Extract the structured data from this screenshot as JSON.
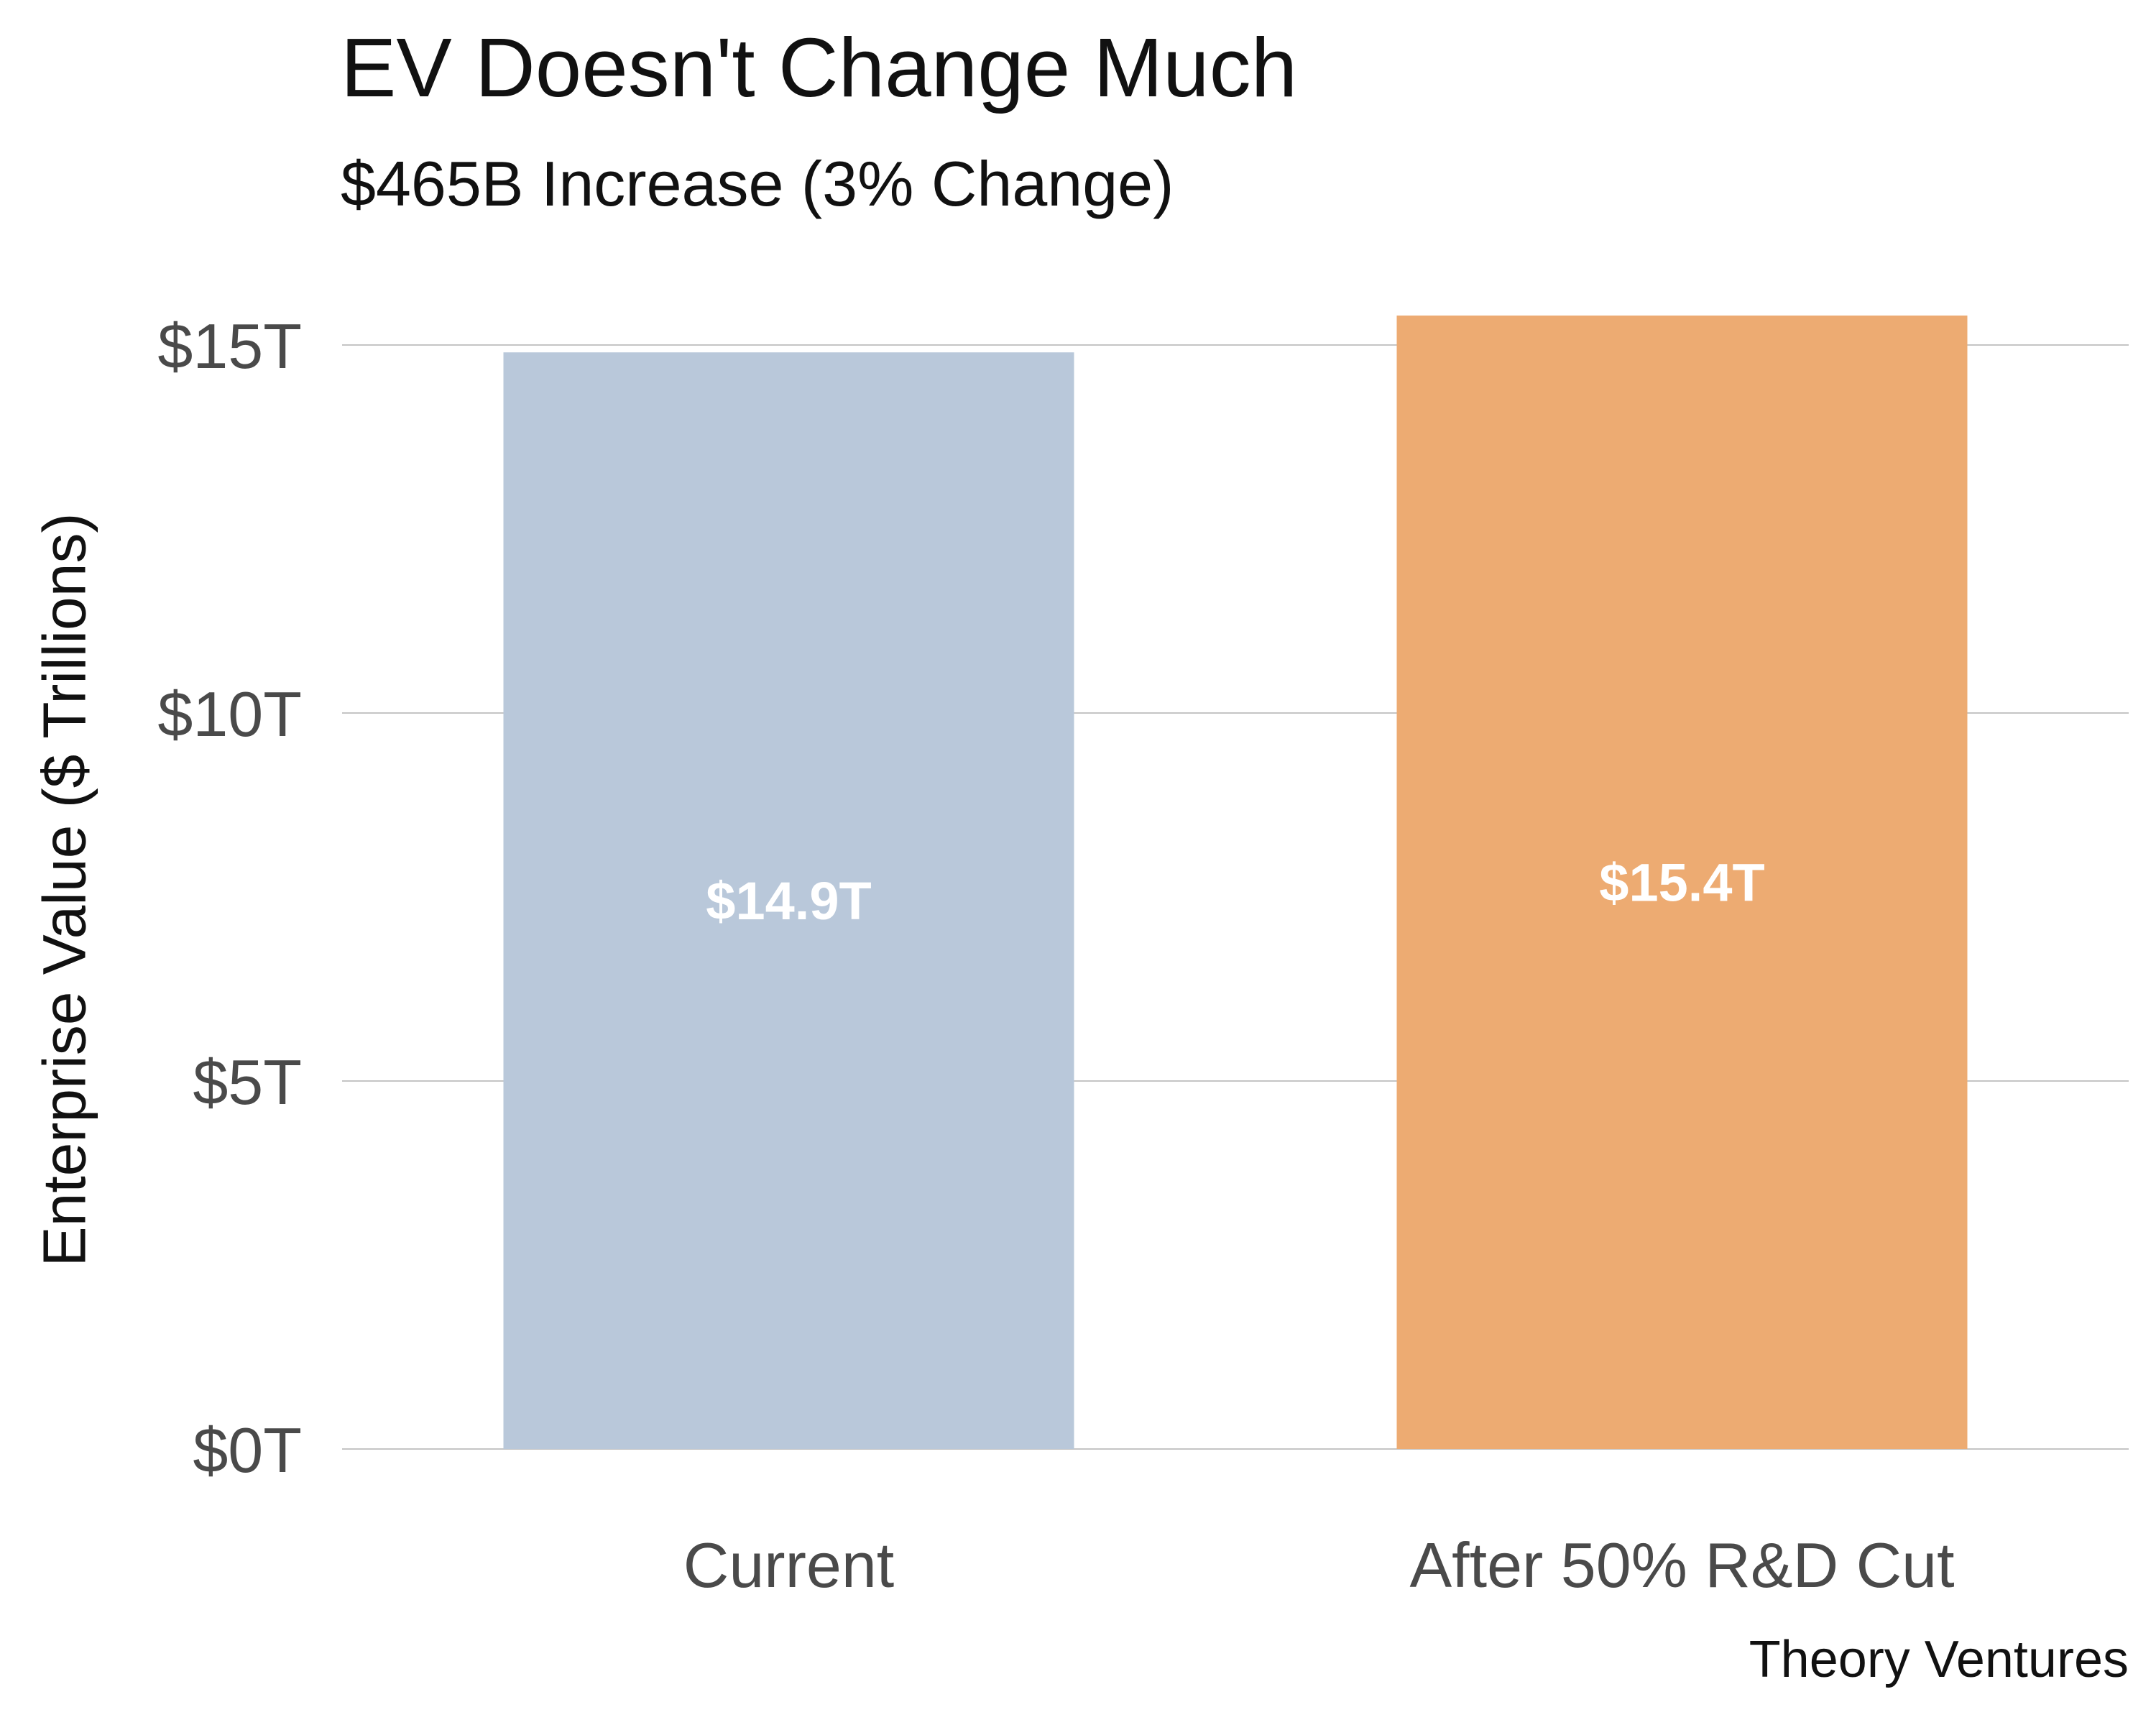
{
  "title": "EV Doesn't Change Much",
  "subtitle": "$465B Increase (3% Change)",
  "source": "Theory Ventures",
  "chart_data": {
    "type": "bar",
    "title": "EV Doesn't Change Much",
    "subtitle": "$465B Increase (3% Change)",
    "xlabel": "",
    "ylabel": "Enterprise Value ($ Trillions)",
    "categories": [
      "Current",
      "After 50% R&D Cut"
    ],
    "values": [
      14.9,
      15.4
    ],
    "data_labels": [
      "$14.9T",
      "$15.4T"
    ],
    "bar_colors": [
      "#b9c8da",
      "#edab72"
    ],
    "ylim": [
      0,
      15
    ],
    "yticks": [
      0,
      5,
      10,
      15
    ],
    "ytick_labels": [
      "$0T",
      "$5T",
      "$10T",
      "$15T"
    ],
    "grid": "horizontal",
    "legend": "none"
  }
}
